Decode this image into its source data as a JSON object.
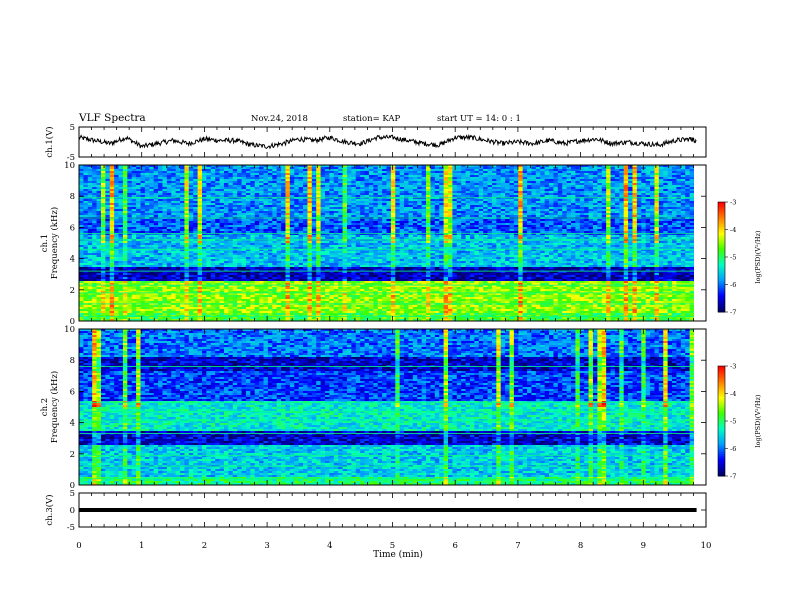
{
  "header": {
    "title": "VLF Spectra",
    "date": "Nov.24, 2018",
    "station": "station= KAP",
    "start": "start  UT =   14: 0  : 1"
  },
  "colors": {
    "trace": "#000000",
    "background_spectrum": "#0a1a9a",
    "band_highlight": "#00ff80",
    "colormap": [
      "#000066",
      "#0000ff",
      "#00a0ff",
      "#00ffc0",
      "#40ff00",
      "#ffff00",
      "#ff8000",
      "#ff0000"
    ]
  },
  "chart_data": [
    {
      "type": "line",
      "panel": "ch1_waveform",
      "ylabel": "ch.1(V)",
      "ylim": [
        -5,
        5
      ],
      "yticks": [
        "5",
        "-5"
      ],
      "xlim": [
        0,
        10
      ],
      "series": [
        {
          "x": [
            0,
            0.25,
            0.5,
            0.75,
            1,
            1.25,
            1.5,
            1.75,
            2,
            2.25,
            2.5,
            2.75,
            3,
            3.25,
            3.5,
            3.75,
            4,
            4.25,
            4.5,
            4.75,
            5,
            5.25,
            5.5,
            5.75,
            6,
            6.25,
            6.5,
            6.75,
            7,
            7.25,
            7.5,
            7.75,
            8,
            8.25,
            8.5,
            8.75,
            9,
            9.25,
            9.5,
            9.75,
            9.85
          ],
          "values": [
            1.5,
            0.5,
            -0.5,
            1.5,
            -1.5,
            -0.5,
            0.5,
            -0.5,
            1.0,
            0.5,
            0.5,
            -1.0,
            -1.5,
            -0.5,
            1.0,
            0.5,
            1.5,
            0,
            -0.5,
            1.5,
            1.5,
            0.5,
            -0.5,
            -1.0,
            1.5,
            1.5,
            0.5,
            -0.5,
            0,
            -0.5,
            0.5,
            -0.5,
            0.5,
            1.0,
            -0.5,
            0,
            -0.5,
            -1.0,
            0.5,
            1.0,
            0.5
          ]
        }
      ]
    },
    {
      "type": "heatmap",
      "panel": "ch1_spectrogram",
      "ylabel": "ch.1\nFrequency (kHz)",
      "ylim": [
        0,
        10
      ],
      "yticks": [
        "0",
        "2",
        "4",
        "6",
        "8",
        "10"
      ],
      "xlim": [
        0,
        10
      ],
      "colorbar": {
        "label": "log(PSD)(V²/Hz)",
        "range": [
          -7,
          -3
        ],
        "ticks": [
          "-3",
          "-4",
          "-5",
          "-6",
          "-7"
        ]
      }
    },
    {
      "type": "heatmap",
      "panel": "ch2_spectrogram",
      "ylabel": "ch.2\nFrequency (kHz)",
      "ylim": [
        0,
        10
      ],
      "yticks": [
        "0",
        "2",
        "4",
        "6",
        "8",
        "10"
      ],
      "xlim": [
        0,
        10
      ],
      "colorbar": {
        "label": "log(PSD)(V²/Hz)",
        "range": [
          -7,
          -3
        ],
        "ticks": [
          "-3",
          "-4",
          "-5",
          "-6",
          "-7"
        ]
      }
    },
    {
      "type": "line",
      "panel": "ch3_waveform",
      "ylabel": "ch.3(V)",
      "ylim": [
        -5,
        5
      ],
      "yticks": [
        "5",
        "0",
        "-5"
      ],
      "xlim": [
        0,
        10
      ],
      "series": [
        {
          "x": [
            0,
            9.85
          ],
          "values": [
            0,
            0
          ]
        }
      ]
    }
  ],
  "xaxis": {
    "label": "Time (min)",
    "ticks": [
      "0",
      "1",
      "2",
      "3",
      "4",
      "5",
      "6",
      "7",
      "8",
      "9",
      "10"
    ]
  }
}
